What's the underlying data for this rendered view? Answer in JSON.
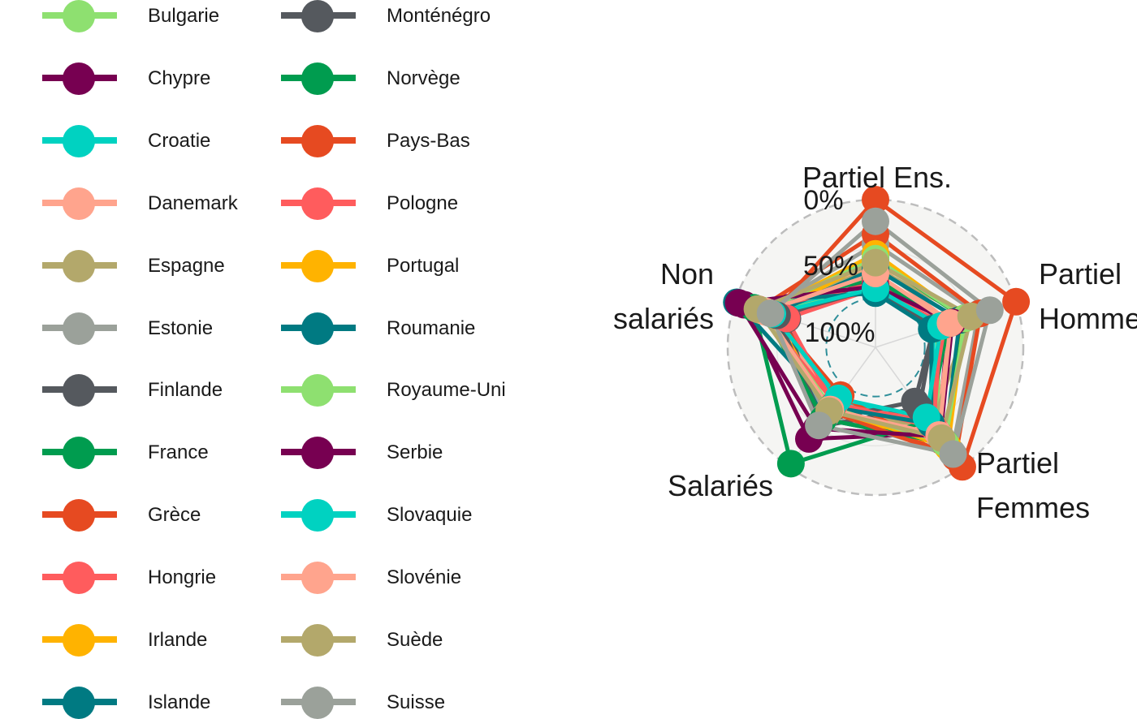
{
  "chart_data": {
    "type": "radar",
    "axes": [
      "Partiel Ens.",
      "Partiel Hommes",
      "Partiel Femmes",
      "Salariés",
      "Non salariés"
    ],
    "axis_label_lines": [
      [
        "Partiel Ens."
      ],
      [
        "Partiel",
        "Hommes"
      ],
      [
        "Partiel",
        "Femmes"
      ],
      [
        "Salariés"
      ],
      [
        "Non",
        "salariés"
      ]
    ],
    "grid_ticks": [
      {
        "value": 0,
        "label": "0%"
      },
      {
        "value": 50,
        "label": "50%"
      },
      {
        "value": 100,
        "label": "100%"
      }
    ],
    "range": [
      -50,
      100
    ],
    "series": [
      {
        "name": "Bulgarie",
        "color": "#8ee070",
        "values": [
          8,
          16,
          60,
          20,
          68
        ]
      },
      {
        "name": "Chypre",
        "color": "#770051",
        "values": [
          20,
          28,
          58,
          65,
          90
        ]
      },
      {
        "name": "Croatie",
        "color": "#00d2c1",
        "values": [
          14,
          12,
          48,
          15,
          70
        ]
      },
      {
        "name": "Danemark",
        "color": "#ffa48d",
        "values": [
          35,
          30,
          56,
          20,
          65
        ]
      },
      {
        "name": "Espagne",
        "color": "#b3a86b",
        "values": [
          30,
          50,
          48,
          34,
          72
        ]
      },
      {
        "name": "Estonie",
        "color": "#9ba19a",
        "values": [
          55,
          60,
          82,
          36,
          68
        ]
      },
      {
        "name": "Finlande",
        "color": "#55595e",
        "values": [
          22,
          12,
          26,
          50,
          44
        ]
      },
      {
        "name": "France",
        "color": "#009c4f",
        "values": [
          20,
          28,
          42,
          96,
          80
        ]
      },
      {
        "name": "Grèce",
        "color": "#e64a21",
        "values": [
          100,
          100,
          100,
          10,
          60
        ]
      },
      {
        "name": "Hongrie",
        "color": "#ff5c5d",
        "values": [
          10,
          24,
          42,
          22,
          45
        ]
      },
      {
        "name": "Irlande",
        "color": "#ffb300",
        "values": [
          40,
          45,
          75,
          30,
          60
        ]
      },
      {
        "name": "Islande",
        "color": "#007a82",
        "values": [
          30,
          40,
          70,
          40,
          60
        ]
      },
      {
        "name": "Monténégro",
        "color": "#55595e",
        "values": [
          10,
          12,
          18,
          42,
          55
        ]
      },
      {
        "name": "Norvège",
        "color": "#009c4f",
        "values": [
          40,
          45,
          70,
          40,
          70
        ]
      },
      {
        "name": "Pays-Bas",
        "color": "#e64a21",
        "values": [
          65,
          62,
          88,
          30,
          75
        ]
      },
      {
        "name": "Pologne",
        "color": "#ff5c5d",
        "values": [
          15,
          20,
          50,
          20,
          75
        ]
      },
      {
        "name": "Portugal",
        "color": "#ffb300",
        "values": [
          45,
          45,
          74,
          28,
          68
        ]
      },
      {
        "name": "Roumanie",
        "color": "#007a82",
        "values": [
          5,
          10,
          46,
          25,
          98
        ]
      },
      {
        "name": "Royaume-Uni",
        "color": "#8ee070",
        "values": [
          40,
          46,
          70,
          26,
          70
        ]
      },
      {
        "name": "Serbie",
        "color": "#770051",
        "values": [
          12,
          32,
          62,
          52,
          96
        ]
      },
      {
        "name": "Slovaquie",
        "color": "#00d2c1",
        "values": [
          10,
          20,
          38,
          14,
          60
        ]
      },
      {
        "name": "Slovénie",
        "color": "#ffa48d",
        "values": [
          25,
          30,
          60,
          28,
          68
        ]
      },
      {
        "name": "Suède",
        "color": "#b3a86b",
        "values": [
          36,
          52,
          64,
          30,
          76
        ]
      },
      {
        "name": "Suisse",
        "color": "#9ba19a",
        "values": [
          78,
          72,
          84,
          48,
          62
        ]
      }
    ]
  }
}
